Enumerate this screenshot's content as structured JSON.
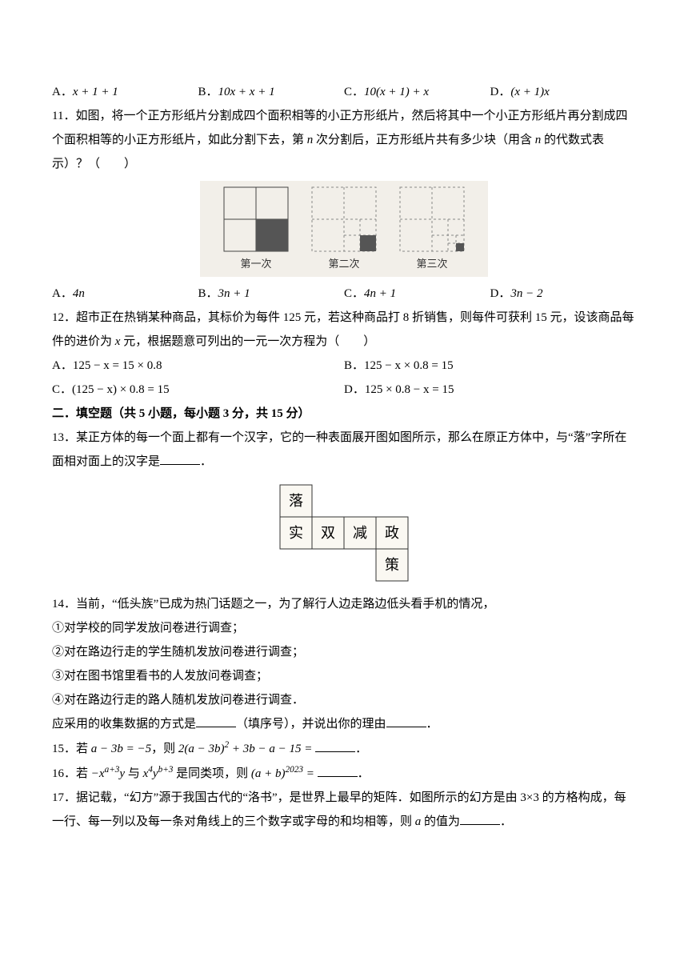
{
  "q10opts": {
    "a_label": "A．",
    "a_math": "x + 1 + 1",
    "b_label": "B．",
    "b_math": "10x + x + 1",
    "c_label": "C．",
    "c_math": "10(x + 1) + x",
    "d_label": "D．",
    "d_math": "(x + 1)x"
  },
  "q11": {
    "num": "11．",
    "text1": "如图，将一个正方形纸片分割成四个面积相等的小正方形纸片，然后将其中一个小正方形纸片再分割成四个面积相等的小正方形纸片，如此分割下去，第 ",
    "var": "n",
    "text2": " 次分割后，正方形纸片共有多少块（用含 ",
    "var2": "n",
    "text3": " 的代数式表示）？（　　）",
    "captions": {
      "c1": "第一次",
      "c2": "第二次",
      "c3": "第三次"
    },
    "opts": {
      "a_label": "A．",
      "a_math": "4n",
      "b_label": "B．",
      "b_math": "3n + 1",
      "c_label": "C．",
      "c_math": "4n + 1",
      "d_label": "D．",
      "d_math": "3n − 2"
    },
    "fig": {
      "s": 80,
      "gap": 30,
      "dashed": "#888",
      "solid": "#444",
      "fill": "#555",
      "bg": "#f2efe9"
    }
  },
  "q12": {
    "num": "12．",
    "text": "超市正在热销某种商品，其标价为每件 125 元，若这种商品打 8 折销售，则每件可获利 15 元，设该商品每件的进价为 ",
    "var": "x",
    "text2": " 元，根据题意可列出的一元一次方程为（　　）",
    "opts": {
      "a_label": "A．",
      "a_math": "125 − x = 15 × 0.8",
      "b_label": "B．",
      "b_math": "125 − x × 0.8 = 15",
      "c_label": "C．",
      "c_math": "(125 − x) × 0.8 = 15",
      "d_label": "D．",
      "d_math": "125 × 0.8 − x = 15"
    }
  },
  "section2": "二．填空题（共 5 小题，每小题 3 分，共 15 分）",
  "q13": {
    "num": "13．",
    "text1": "某正方体的每一个面上都有一个汉字，它的一种表面展开图如图所示，那么在原正方体中，与“落”字所在面相对面上的汉字是",
    "period": "．",
    "net": {
      "cells": [
        "落",
        "实",
        "双",
        "减",
        "政",
        "策"
      ],
      "cell": 40,
      "stroke": "#333",
      "bg": "#faf8f2"
    }
  },
  "q14": {
    "num": "14．",
    "text": "当前，“低头族”已成为热门话题之一，为了解行人边走路边低头看手机的情况，",
    "items": [
      "①对学校的同学发放问卷进行调查；",
      "②对在路边行走的学生随机发放问卷进行调查；",
      "③对在图书馆里看书的人发放问卷调查；",
      "④对在路边行走的路人随机发放问卷进行调查．"
    ],
    "tail1": "应采用的收集数据的方式是",
    "hint": "（填序号），并说出你的理由",
    "period": "．"
  },
  "q15": {
    "num": "15．",
    "pre": "若 ",
    "eq1": "a − 3b = −5",
    "mid": "，则 ",
    "eq2_a": "2(a − 3b)",
    "eq2_exp": "2",
    "eq2_b": " + 3b − a − 15 =",
    "period": "．"
  },
  "q16": {
    "num": "16．",
    "pre": "若 ",
    "t1a": "−x",
    "t1exp": "a+3",
    "t1b": "y",
    "mid1": " 与 ",
    "t2a": "x",
    "t2exp1": "4",
    "t2b": "y",
    "t2exp2": "b+3",
    "mid2": " 是同类项，则 ",
    "t3a": "(a + b)",
    "t3exp": "2023",
    "eq": " =",
    "period": "．"
  },
  "q17": {
    "num": "17．",
    "text1": "据记载，“幻方”源于我国古代的“洛书”，是世界上最早的矩阵．如图所示的幻方是由 3×3 的方格构成，每一行、每一列以及每一条对角线上的三个数字或字母的和均相等，则 ",
    "var": "a",
    "text2": " 的值为",
    "period": "．"
  }
}
